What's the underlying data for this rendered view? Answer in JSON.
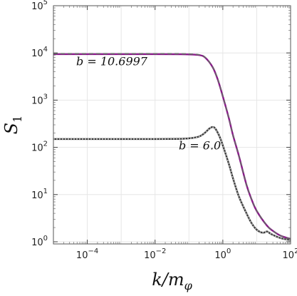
{
  "chart_data": {
    "type": "line",
    "xscale": "log",
    "yscale": "log",
    "xlim": [
      1e-05,
      100
    ],
    "ylim": [
      0.9,
      100000
    ],
    "grid": true,
    "xlabel": "k/m_φ",
    "ylabel": "S_1",
    "x_ticks": [
      {
        "value": 0.0001,
        "base": "10",
        "exp": "−4"
      },
      {
        "value": 0.01,
        "base": "10",
        "exp": "−2"
      },
      {
        "value": 1,
        "base": "10",
        "exp": "0"
      },
      {
        "value": 100,
        "base": "10",
        "exp": "2"
      }
    ],
    "y_ticks": [
      {
        "value": 1,
        "base": "10",
        "exp": "0"
      },
      {
        "value": 10,
        "base": "10",
        "exp": "1"
      },
      {
        "value": 100,
        "base": "10",
        "exp": "2"
      },
      {
        "value": 1000,
        "base": "10",
        "exp": "3"
      },
      {
        "value": 10000,
        "base": "10",
        "exp": "4"
      },
      {
        "value": 100000,
        "base": "10",
        "exp": "5"
      }
    ],
    "series": [
      {
        "color": "#8b1a8b",
        "style": "solid",
        "x": [
          1e-05,
          0.0001,
          0.001,
          0.01,
          0.05,
          0.1,
          0.2,
          0.3,
          0.5,
          0.7,
          1,
          1.5,
          2,
          3,
          5,
          7,
          10,
          20,
          30,
          50,
          100
        ],
        "y": [
          9400,
          9400,
          9400,
          9400,
          9380,
          9300,
          9000,
          8000,
          5000,
          2800,
          1200,
          420,
          180,
          65,
          16,
          8,
          4.5,
          2.2,
          1.7,
          1.35,
          1.15
        ]
      },
      {
        "color": "#666666",
        "style": "dashed",
        "x": [
          1e-05,
          0.0001,
          0.001,
          0.01,
          0.05,
          0.1,
          0.2,
          0.3,
          0.5,
          0.7,
          1,
          1.5,
          2,
          3,
          5,
          7,
          10,
          20,
          30,
          50,
          100
        ],
        "y": [
          9600,
          9600,
          9600,
          9600,
          9570,
          9480,
          9150,
          8100,
          5050,
          2850,
          1220,
          425,
          182,
          66,
          16.2,
          8.1,
          4.6,
          2.2,
          1.7,
          1.35,
          1.15
        ]
      },
      {
        "color": "#333333",
        "style": "solid",
        "x": [
          1e-05,
          0.0001,
          0.001,
          0.01,
          0.05,
          0.1,
          0.2,
          0.3,
          0.4,
          0.5,
          0.6,
          0.8,
          1,
          1.5,
          2,
          3,
          5,
          7,
          10,
          15,
          20,
          25,
          30,
          50,
          100
        ],
        "y": [
          150,
          150,
          150,
          150,
          151,
          155,
          170,
          205,
          250,
          270,
          250,
          170,
          110,
          45,
          22,
          9,
          4,
          2.5,
          1.8,
          1.55,
          1.65,
          1.5,
          1.4,
          1.2,
          1.08
        ]
      },
      {
        "color": "#bbbbbb",
        "style": "dotted",
        "x": [
          1e-05,
          0.0001,
          0.001,
          0.01,
          0.05,
          0.1,
          0.2,
          0.3,
          0.4,
          0.5,
          0.6,
          0.8,
          1,
          1.5,
          2,
          3,
          5,
          7,
          10,
          15,
          20,
          25,
          30,
          50,
          100
        ],
        "y": [
          150,
          150,
          150,
          150,
          151,
          155,
          170,
          205,
          250,
          270,
          250,
          170,
          110,
          45,
          22,
          9,
          4,
          2.5,
          1.8,
          1.55,
          1.65,
          1.5,
          1.4,
          1.2,
          1.08
        ]
      }
    ],
    "annotations": [
      {
        "text": "b = 10.6997",
        "x": 1e-05,
        "y": 5500
      },
      {
        "text": "b = 6.0",
        "x": 0.05,
        "y": 90
      }
    ]
  }
}
